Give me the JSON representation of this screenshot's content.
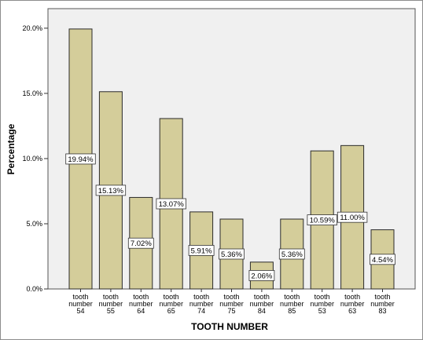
{
  "chart_data": {
    "type": "bar",
    "title": "",
    "xlabel": "TOOTH NUMBER",
    "ylabel": "Percentage",
    "ylim": [
      0,
      21.5
    ],
    "yticks": [
      0,
      5,
      10,
      15,
      20
    ],
    "ytick_labels": [
      "0.0%",
      "5.0%",
      "10.0%",
      "15.0%",
      "20.0%"
    ],
    "grid": false,
    "categories": [
      [
        "tooth",
        "number",
        "54"
      ],
      [
        "tooth",
        "number",
        "55"
      ],
      [
        "tooth",
        "number",
        "64"
      ],
      [
        "tooth",
        "number",
        "65"
      ],
      [
        "tooth",
        "number",
        "74"
      ],
      [
        "tooth",
        "number",
        "75"
      ],
      [
        "tooth",
        "number",
        "84"
      ],
      [
        "tooth",
        "number",
        "85"
      ],
      [
        "tooth",
        "number",
        "53"
      ],
      [
        "tooth",
        "number",
        "63"
      ],
      [
        "tooth",
        "number",
        "83"
      ]
    ],
    "values": [
      19.94,
      15.13,
      7.02,
      13.07,
      5.91,
      5.36,
      2.06,
      5.36,
      10.59,
      11.0,
      4.54
    ],
    "data_labels": [
      "19.94%",
      "15.13%",
      "7.02%",
      "13.07%",
      "5.91%",
      "5.36%",
      "2.06%",
      "5.36%",
      "10.59%",
      "11.00%",
      "4.54%"
    ],
    "colors": {
      "bar_fill": "#d4cd9a",
      "bar_stroke": "#2b2b2b",
      "plot_bg": "#f0f0f0",
      "label_bg": "#ffffff"
    }
  }
}
